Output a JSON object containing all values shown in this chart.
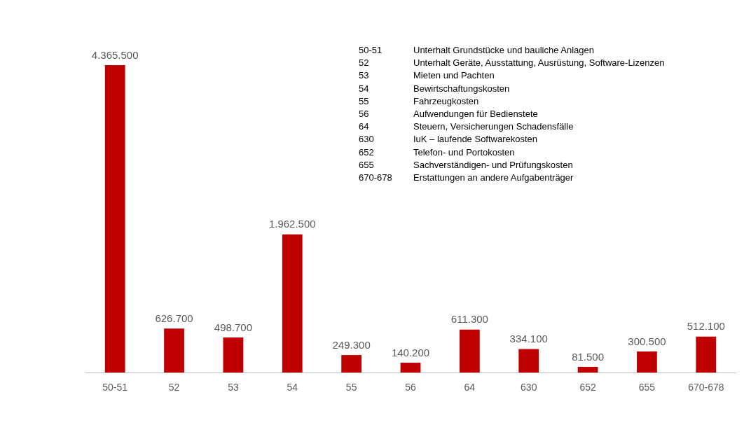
{
  "chart_data": {
    "type": "bar",
    "categories": [
      "50-51",
      "52",
      "53",
      "54",
      "55",
      "56",
      "64",
      "630",
      "652",
      "655",
      "670-678"
    ],
    "values": [
      4365500,
      626700,
      498700,
      1962500,
      249300,
      140200,
      611300,
      334100,
      81500,
      300500,
      512100
    ],
    "value_labels": [
      "4.365.500",
      "626.700",
      "498.700",
      "1.962.500",
      "249.300",
      "140.200",
      "611.300",
      "334.100",
      "81.500",
      "300.500",
      "512.100"
    ],
    "color": "#c00000",
    "annotations": [
      "50-51\tUnterhalt Grundstücke und bauliche Anlagen",
      "52\tUnterhalt Geräte, Ausstattung, Ausrüstung, Software-Lizenzen",
      "53\tMieten und Pachten",
      "54\tBewirtschaftungskosten",
      "55\tFahrzeugkosten",
      "56\tAufwendungen für Bedienstete",
      "64\tSteuern, Versicherungen Schadensfälle",
      "630\tIuK – laufende Softwarekosten",
      "652\tTelefon- und Portokosten",
      "655\tSachverständigen- und Prüfungskosten",
      "670-678\tErstattungen an andere Aufgabenträger"
    ],
    "grid": false,
    "legend": false
  }
}
